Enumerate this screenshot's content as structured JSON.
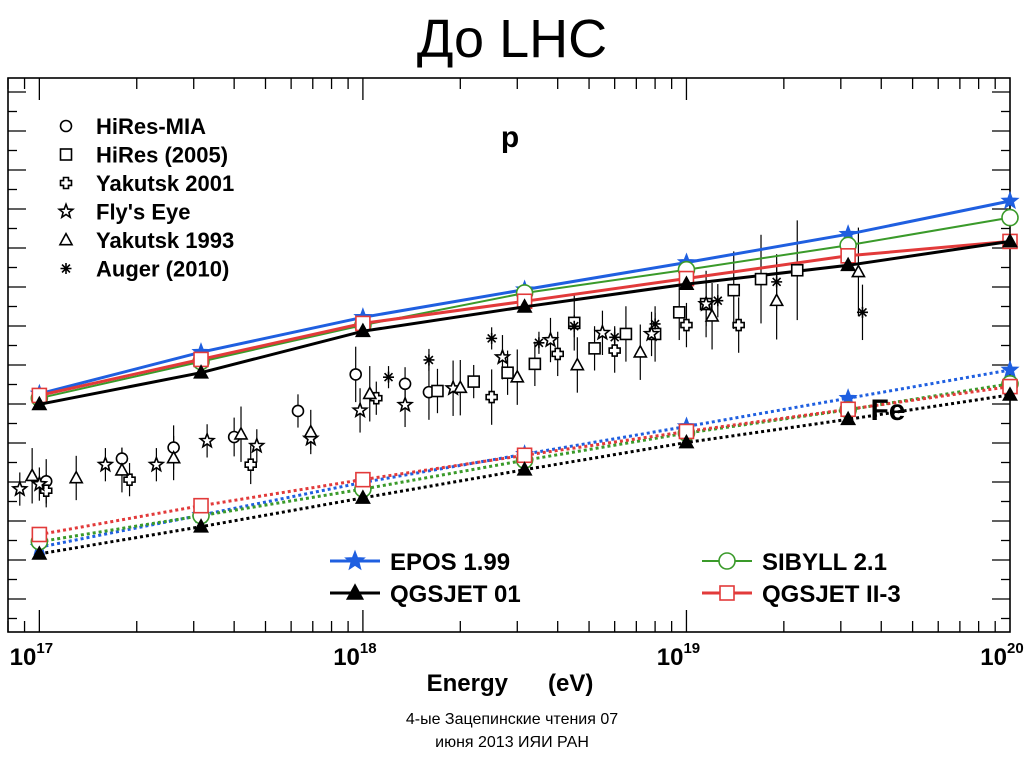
{
  "slide": {
    "title": "До LHC",
    "footer_line1": "4-ые Зацепинские чтения 07",
    "footer_line2": "июня 2013 ИЯИ РАН"
  },
  "chart_data": {
    "type": "scatter",
    "xlabel": "Energy      (eV)",
    "x_scale": "log",
    "xlim": [
      8e+16,
      1e+20
    ],
    "y_ticks_labeled": false,
    "x_ticks": [
      {
        "value": 1e+17,
        "base": "10",
        "exp": "17"
      },
      {
        "value": 1e+18,
        "base": "10",
        "exp": "18"
      },
      {
        "value": 1e+19,
        "base": "10",
        "exp": "19"
      },
      {
        "value": 1e+20,
        "base": "10",
        "exp": "20"
      }
    ],
    "annotations": [
      {
        "text": "p",
        "near": "upper-middle"
      },
      {
        "text": "Fe",
        "near": "right-middle"
      }
    ],
    "model_legend": [
      {
        "name": "EPOS 1.99",
        "marker": "star",
        "color": "#1f5fe0"
      },
      {
        "name": "QGSJET 01",
        "marker": "triangle",
        "color": "#000000"
      },
      {
        "name": "SIBYLL 2.1",
        "marker": "circle",
        "color": "#3a9a2a"
      },
      {
        "name": "QGSJET II-3",
        "marker": "square",
        "color": "#e23a3a"
      }
    ],
    "data_legend": [
      {
        "name": "HiRes-MIA",
        "marker": "circle"
      },
      {
        "name": "HiRes (2005)",
        "marker": "square"
      },
      {
        "name": "Yakutsk 2001",
        "marker": "cross"
      },
      {
        "name": "Fly's Eye",
        "marker": "star"
      },
      {
        "name": "Yakutsk 1993",
        "marker": "triangle"
      },
      {
        "name": "Auger (2010)",
        "marker": "asterisk"
      }
    ],
    "model_x": [
      1e+17,
      3.16e+17,
      1e+18,
      3.16e+18,
      1e+19,
      3.16e+19,
      1e+20
    ],
    "models": [
      {
        "name": "EPOS 1.99",
        "primary": "p",
        "color": "#1f5fe0",
        "marker": "star",
        "y": [
          0.57,
          0.495,
          0.432,
          0.382,
          0.333,
          0.282,
          0.222
        ]
      },
      {
        "name": "SIBYLL 2.1",
        "primary": "p",
        "color": "#3a9a2a",
        "marker": "circle",
        "y": [
          0.578,
          0.512,
          0.446,
          0.388,
          0.346,
          0.302,
          0.252
        ]
      },
      {
        "name": "QGSJET II-3",
        "primary": "p",
        "color": "#e23a3a",
        "marker": "square",
        "y": [
          0.573,
          0.508,
          0.443,
          0.403,
          0.362,
          0.321,
          0.295
        ]
      },
      {
        "name": "QGSJET 01",
        "primary": "p",
        "color": "#000000",
        "marker": "triangle",
        "y": [
          0.589,
          0.532,
          0.457,
          0.413,
          0.372,
          0.338,
          0.295
        ]
      },
      {
        "name": "EPOS 1.99",
        "primary": "Fe",
        "color": "#1f5fe0",
        "marker": "star",
        "y": [
          0.847,
          0.789,
          0.73,
          0.679,
          0.629,
          0.578,
          0.527
        ]
      },
      {
        "name": "SIBYLL 2.1",
        "primary": "Fe",
        "color": "#3a9a2a",
        "marker": "circle",
        "y": [
          0.837,
          0.79,
          0.742,
          0.69,
          0.641,
          0.599,
          0.552
        ]
      },
      {
        "name": "QGSJET II-3",
        "primary": "Fe",
        "color": "#e23a3a",
        "marker": "square",
        "y": [
          0.824,
          0.772,
          0.725,
          0.681,
          0.638,
          0.598,
          0.557
        ]
      },
      {
        "name": "QGSJET 01",
        "primary": "Fe",
        "color": "#000000",
        "marker": "triangle",
        "y": [
          0.859,
          0.81,
          0.758,
          0.707,
          0.658,
          0.616,
          0.572
        ]
      }
    ],
    "data_points": [
      {
        "series": "HiRes-MIA",
        "marker": "circle",
        "x": 1.05e+17,
        "y": 0.728,
        "err": 0.04
      },
      {
        "series": "HiRes-MIA",
        "marker": "circle",
        "x": 1.8e+17,
        "y": 0.687,
        "err": 0.02
      },
      {
        "series": "HiRes-MIA",
        "marker": "circle",
        "x": 2.6e+17,
        "y": 0.667,
        "err": 0.04
      },
      {
        "series": "HiRes-MIA",
        "marker": "circle",
        "x": 4e+17,
        "y": 0.648,
        "err": 0.035
      },
      {
        "series": "HiRes-MIA",
        "marker": "circle",
        "x": 6.3e+17,
        "y": 0.601,
        "err": 0.03
      },
      {
        "series": "HiRes-MIA",
        "marker": "circle",
        "x": 9.5e+17,
        "y": 0.535,
        "err": 0.05
      },
      {
        "series": "HiRes-MIA",
        "marker": "circle",
        "x": 1.35e+18,
        "y": 0.552,
        "err": 0.03
      },
      {
        "series": "HiRes-MIA",
        "marker": "circle",
        "x": 1.6e+18,
        "y": 0.567,
        "err": 0.05
      },
      {
        "series": "HiRes (2005)",
        "marker": "square",
        "x": 1.7e+18,
        "y": 0.565,
        "err": 0.04
      },
      {
        "series": "HiRes (2005)",
        "marker": "square",
        "x": 2.2e+18,
        "y": 0.548,
        "err": 0.03
      },
      {
        "series": "HiRes (2005)",
        "marker": "square",
        "x": 2.8e+18,
        "y": 0.532,
        "err": 0.04
      },
      {
        "series": "HiRes (2005)",
        "marker": "square",
        "x": 3.4e+18,
        "y": 0.516,
        "err": 0.04
      },
      {
        "series": "HiRes (2005)",
        "marker": "square",
        "x": 4.5e+18,
        "y": 0.442,
        "err": 0.05
      },
      {
        "series": "HiRes (2005)",
        "marker": "square",
        "x": 5.2e+18,
        "y": 0.488,
        "err": 0.04
      },
      {
        "series": "HiRes (2005)",
        "marker": "square",
        "x": 6.5e+18,
        "y": 0.462,
        "err": 0.05
      },
      {
        "series": "HiRes (2005)",
        "marker": "square",
        "x": 8e+18,
        "y": 0.462,
        "err": 0.05
      },
      {
        "series": "HiRes (2005)",
        "marker": "square",
        "x": 9.5e+18,
        "y": 0.423,
        "err": 0.05
      },
      {
        "series": "HiRes (2005)",
        "marker": "square",
        "x": 1.15e+19,
        "y": 0.408,
        "err": 0.06
      },
      {
        "series": "HiRes (2005)",
        "marker": "square",
        "x": 1.4e+19,
        "y": 0.383,
        "err": 0.07
      },
      {
        "series": "HiRes (2005)",
        "marker": "square",
        "x": 1.7e+19,
        "y": 0.363,
        "err": 0.08
      },
      {
        "series": "HiRes (2005)",
        "marker": "square",
        "x": 2.2e+19,
        "y": 0.347,
        "err": 0.09
      },
      {
        "series": "Yakutsk 2001",
        "marker": "cross",
        "x": 1.05e+17,
        "y": 0.745,
        "err": 0.03
      },
      {
        "series": "Yakutsk 2001",
        "marker": "cross",
        "x": 1.9e+17,
        "y": 0.725,
        "err": 0.03
      },
      {
        "series": "Yakutsk 2001",
        "marker": "cross",
        "x": 4.5e+17,
        "y": 0.698,
        "err": 0.035
      },
      {
        "series": "Yakutsk 2001",
        "marker": "cross",
        "x": 1.1e+18,
        "y": 0.578,
        "err": 0.03
      },
      {
        "series": "Yakutsk 2001",
        "marker": "cross",
        "x": 2.5e+18,
        "y": 0.576,
        "err": 0.05
      },
      {
        "series": "Yakutsk 2001",
        "marker": "cross",
        "x": 4e+18,
        "y": 0.498,
        "err": 0.04
      },
      {
        "series": "Yakutsk 2001",
        "marker": "cross",
        "x": 6e+18,
        "y": 0.492,
        "err": 0.04
      },
      {
        "series": "Yakutsk 2001",
        "marker": "cross",
        "x": 1e+19,
        "y": 0.446,
        "err": 0.04
      },
      {
        "series": "Yakutsk 2001",
        "marker": "cross",
        "x": 1.45e+19,
        "y": 0.446,
        "err": 0.05
      },
      {
        "series": "Fly's Eye",
        "marker": "star",
        "x": 8.7e+16,
        "y": 0.742,
        "err": 0.03
      },
      {
        "series": "Fly's Eye",
        "marker": "star",
        "x": 1e+17,
        "y": 0.733,
        "err": 0.03
      },
      {
        "series": "Fly's Eye",
        "marker": "star",
        "x": 1.6e+17,
        "y": 0.698,
        "err": 0.03
      },
      {
        "series": "Fly's Eye",
        "marker": "star",
        "x": 2.3e+17,
        "y": 0.698,
        "err": 0.03
      },
      {
        "series": "Fly's Eye",
        "marker": "star",
        "x": 3.3e+17,
        "y": 0.655,
        "err": 0.03
      },
      {
        "series": "Fly's Eye",
        "marker": "star",
        "x": 4.7e+17,
        "y": 0.664,
        "err": 0.03
      },
      {
        "series": "Fly's Eye",
        "marker": "star",
        "x": 6.9e+17,
        "y": 0.651,
        "err": 0.02
      },
      {
        "series": "Fly's Eye",
        "marker": "star",
        "x": 9.8e+17,
        "y": 0.6,
        "err": 0.04
      },
      {
        "series": "Fly's Eye",
        "marker": "star",
        "x": 1.35e+18,
        "y": 0.59,
        "err": 0.04
      },
      {
        "series": "Fly's Eye",
        "marker": "star",
        "x": 1.9e+18,
        "y": 0.56,
        "err": 0.05
      },
      {
        "series": "Fly's Eye",
        "marker": "star",
        "x": 2.7e+18,
        "y": 0.504,
        "err": 0.04
      },
      {
        "series": "Fly's Eye",
        "marker": "star",
        "x": 3.8e+18,
        "y": 0.473,
        "err": 0.04
      },
      {
        "series": "Fly's Eye",
        "marker": "star",
        "x": 5.5e+18,
        "y": 0.46,
        "err": 0.04
      },
      {
        "series": "Fly's Eye",
        "marker": "star",
        "x": 7.8e+18,
        "y": 0.462,
        "err": 0.04
      },
      {
        "series": "Fly's Eye",
        "marker": "star",
        "x": 1.15e+19,
        "y": 0.408,
        "err": 0.04
      },
      {
        "series": "Yakutsk 1993",
        "marker": "triangle",
        "x": 9.5e+16,
        "y": 0.718,
        "err": 0.05
      },
      {
        "series": "Yakutsk 1993",
        "marker": "triangle",
        "x": 1.3e+17,
        "y": 0.722,
        "err": 0.04
      },
      {
        "series": "Yakutsk 1993",
        "marker": "triangle",
        "x": 1.8e+17,
        "y": 0.708,
        "err": 0.04
      },
      {
        "series": "Yakutsk 1993",
        "marker": "triangle",
        "x": 2.6e+17,
        "y": 0.686,
        "err": 0.04
      },
      {
        "series": "Yakutsk 1993",
        "marker": "triangle",
        "x": 4.2e+17,
        "y": 0.643,
        "err": 0.05
      },
      {
        "series": "Yakutsk 1993",
        "marker": "triangle",
        "x": 6.9e+17,
        "y": 0.639,
        "err": 0.04
      },
      {
        "series": "Yakutsk 1993",
        "marker": "triangle",
        "x": 1.05e+18,
        "y": 0.57,
        "err": 0.05
      },
      {
        "series": "Yakutsk 1993",
        "marker": "triangle",
        "x": 2e+18,
        "y": 0.559,
        "err": 0.05
      },
      {
        "series": "Yakutsk 1993",
        "marker": "triangle",
        "x": 3e+18,
        "y": 0.54,
        "err": 0.05
      },
      {
        "series": "Yakutsk 1993",
        "marker": "triangle",
        "x": 4.6e+18,
        "y": 0.518,
        "err": 0.05
      },
      {
        "series": "Yakutsk 1993",
        "marker": "triangle",
        "x": 7.2e+18,
        "y": 0.495,
        "err": 0.05
      },
      {
        "series": "Yakutsk 1993",
        "marker": "triangle",
        "x": 1.2e+19,
        "y": 0.43,
        "err": 0.06
      },
      {
        "series": "Yakutsk 1993",
        "marker": "triangle",
        "x": 1.9e+19,
        "y": 0.402,
        "err": 0.07
      },
      {
        "series": "Yakutsk 1993",
        "marker": "triangle",
        "x": 3.4e+19,
        "y": 0.35,
        "err": 0.08
      },
      {
        "series": "Auger (2010)",
        "marker": "asterisk",
        "x": 1.2e+18,
        "y": 0.54,
        "err": 0.02
      },
      {
        "series": "Auger (2010)",
        "marker": "asterisk",
        "x": 1.6e+18,
        "y": 0.509,
        "err": 0.02
      },
      {
        "series": "Auger (2010)",
        "marker": "asterisk",
        "x": 2.5e+18,
        "y": 0.47,
        "err": 0.02
      },
      {
        "series": "Auger (2010)",
        "marker": "asterisk",
        "x": 3.5e+18,
        "y": 0.478,
        "err": 0.02
      },
      {
        "series": "Auger (2010)",
        "marker": "asterisk",
        "x": 4.5e+18,
        "y": 0.448,
        "err": 0.02
      },
      {
        "series": "Auger (2010)",
        "marker": "asterisk",
        "x": 6e+18,
        "y": 0.468,
        "err": 0.02
      },
      {
        "series": "Auger (2010)",
        "marker": "asterisk",
        "x": 8e+18,
        "y": 0.444,
        "err": 0.02
      },
      {
        "series": "Auger (2010)",
        "marker": "asterisk",
        "x": 1.25e+19,
        "y": 0.402,
        "err": 0.03
      },
      {
        "series": "Auger (2010)",
        "marker": "asterisk",
        "x": 1.9e+19,
        "y": 0.368,
        "err": 0.05
      },
      {
        "series": "Auger (2010)",
        "marker": "asterisk",
        "x": 3.5e+19,
        "y": 0.423,
        "err": 0.05
      }
    ]
  }
}
